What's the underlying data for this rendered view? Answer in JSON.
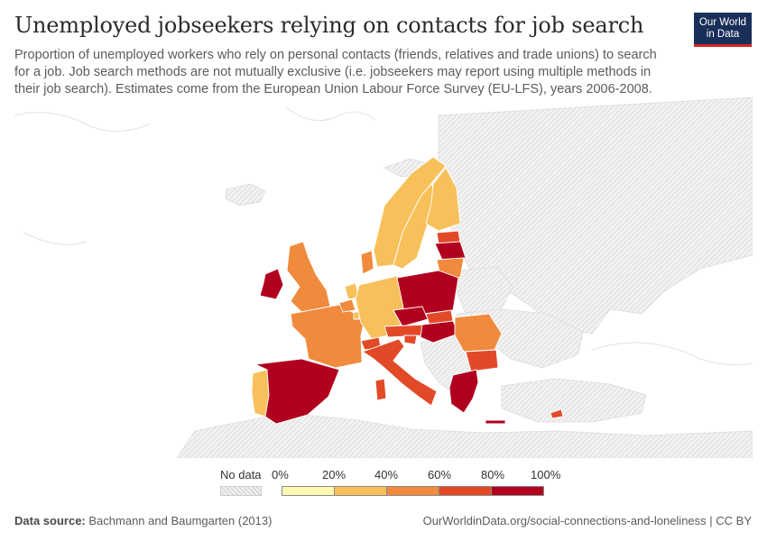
{
  "title": "Unemployed jobseekers relying on contacts for job search",
  "subtitle": "Proportion of unemployed workers who rely on personal contacts (friends, relatives and trade unions) to search for a job. Job search methods are not mutually exclusive (i.e. jobseekers may report using multiple methods in their job search). Estimates come from the European Union Labour Force Survey (EU-LFS), years 2006-2008.",
  "logo": {
    "line1": "Our World",
    "line2": "in Data"
  },
  "legend": {
    "no_data_label": "No data",
    "tick_labels": [
      "0%",
      "20%",
      "40%",
      "60%",
      "80%",
      "100%"
    ],
    "bin_colors": [
      "#fef9b2",
      "#f7c05a",
      "#f08a3c",
      "#e24a27",
      "#b1001f"
    ]
  },
  "no_data_color": "#eeeeee",
  "border_color": "#ffffff",
  "regions": [
    {
      "name": "Ireland",
      "bin": 4
    },
    {
      "name": "United Kingdom",
      "bin": 2
    },
    {
      "name": "Portugal",
      "bin": 1
    },
    {
      "name": "Spain",
      "bin": 4
    },
    {
      "name": "France",
      "bin": 2
    },
    {
      "name": "Belgium",
      "bin": 2
    },
    {
      "name": "Netherlands",
      "bin": 1
    },
    {
      "name": "Luxembourg",
      "bin": 1
    },
    {
      "name": "Germany",
      "bin": 1
    },
    {
      "name": "Denmark",
      "bin": 2
    },
    {
      "name": "Norway",
      "bin": 1
    },
    {
      "name": "Sweden",
      "bin": 1
    },
    {
      "name": "Finland",
      "bin": 1
    },
    {
      "name": "Estonia",
      "bin": 3
    },
    {
      "name": "Latvia",
      "bin": 4
    },
    {
      "name": "Lithuania",
      "bin": 2
    },
    {
      "name": "Poland",
      "bin": 4
    },
    {
      "name": "Czechia",
      "bin": 4
    },
    {
      "name": "Slovakia",
      "bin": 3
    },
    {
      "name": "Austria",
      "bin": 3
    },
    {
      "name": "Hungary",
      "bin": 4
    },
    {
      "name": "Slovenia",
      "bin": 3
    },
    {
      "name": "Italy",
      "bin": 3
    },
    {
      "name": "Sardinia",
      "bin": 3
    },
    {
      "name": "Switzerland",
      "bin": 3
    },
    {
      "name": "Romania",
      "bin": 2
    },
    {
      "name": "Bulgaria",
      "bin": 3
    },
    {
      "name": "Greece",
      "bin": 4
    },
    {
      "name": "Crete",
      "bin": 4
    },
    {
      "name": "Cyprus",
      "bin": 3
    }
  ],
  "footer": {
    "source_label": "Data source:",
    "source_text": "Bachmann and Baumgarten (2013)",
    "url": "OurWorldinData.org/social-connections-and-loneliness | CC BY"
  }
}
